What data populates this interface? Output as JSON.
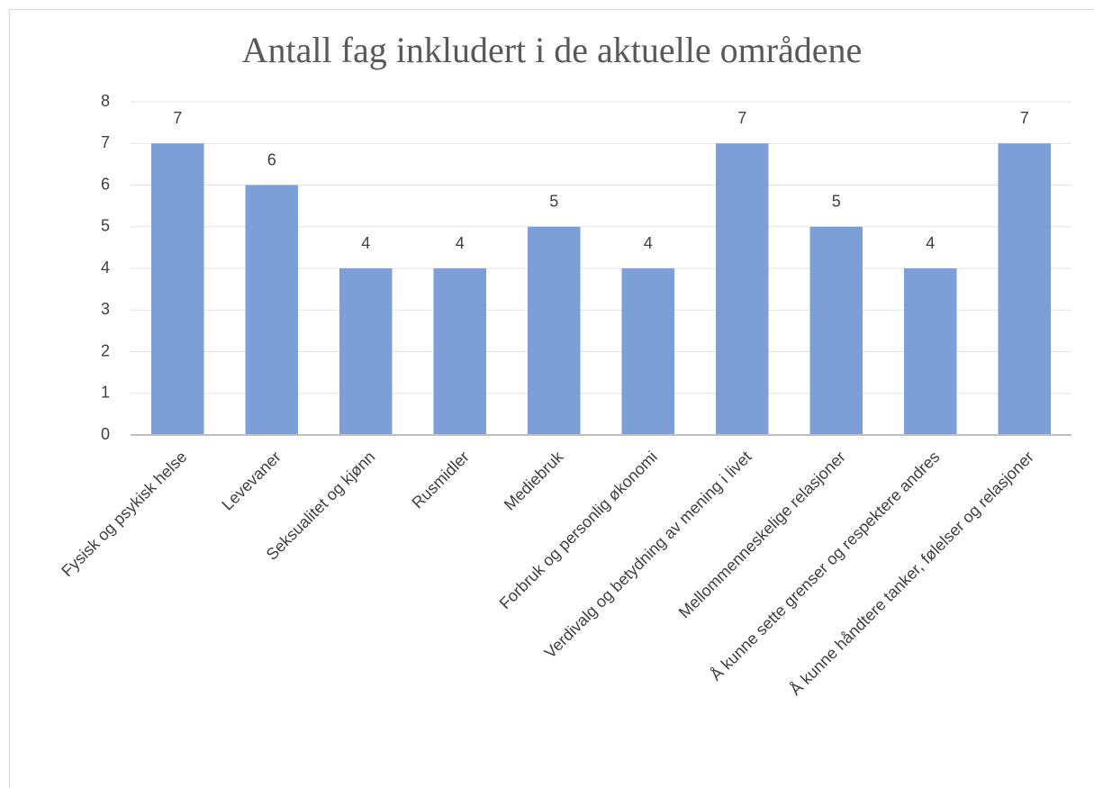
{
  "chart_data": {
    "type": "bar",
    "title": "Antall fag inkludert i de aktuelle områdene",
    "categories": [
      "Fysisk og psykisk helse",
      "Levevaner",
      "Seksualitet og kjønn",
      "Rusmidler",
      "Mediebruk",
      "Forbruk og personlig økonomi",
      "Verdivalg og betydning av mening i livet",
      "Mellommenneskelige relasjoner",
      "Å kunne sette grenser og respektere andres",
      "Å kunne håndtere tanker, følelser og relasjoner"
    ],
    "values": [
      7,
      6,
      4,
      4,
      5,
      4,
      7,
      5,
      4,
      7
    ],
    "color": "#7b9fd6",
    "ylim": [
      0,
      8
    ],
    "yticks": [
      0,
      1,
      2,
      3,
      4,
      5,
      6,
      7,
      8
    ],
    "grid": true
  }
}
